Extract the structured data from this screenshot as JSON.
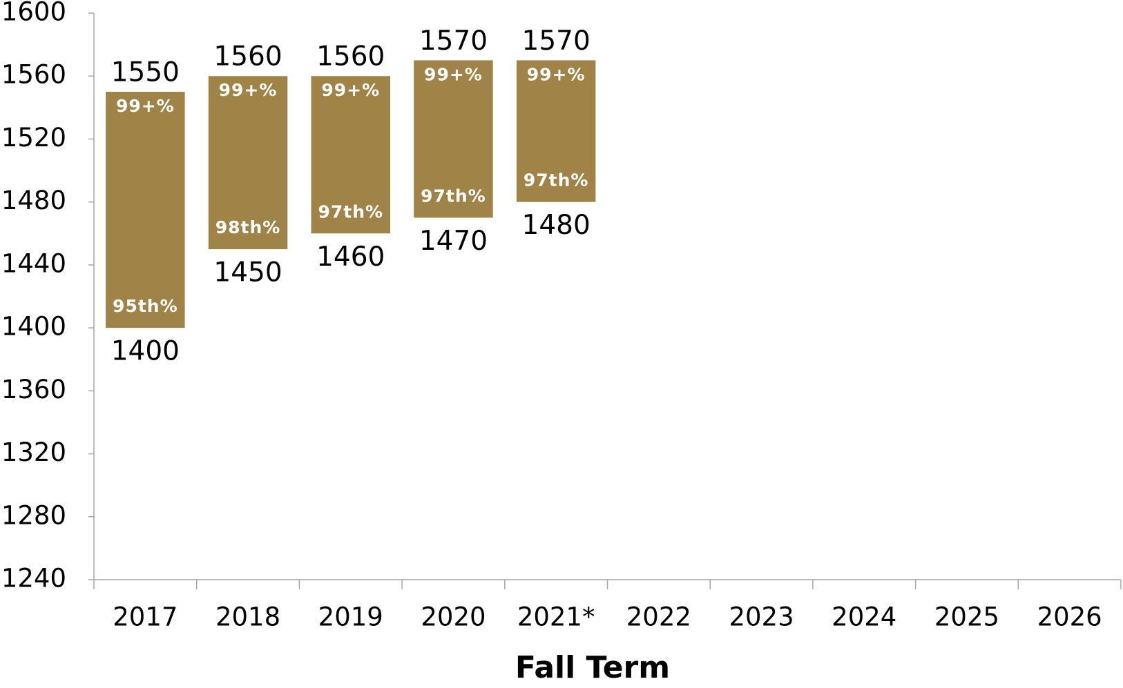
{
  "chart_data": {
    "type": "floating_bar",
    "x_label": "Fall Term",
    "categories": [
      "2017",
      "2018",
      "2019",
      "2020",
      "2021*",
      "2022",
      "2023",
      "2024",
      "2025",
      "2026"
    ],
    "low": [
      1400,
      1450,
      1460,
      1470,
      1480,
      null,
      null,
      null,
      null,
      null
    ],
    "high": [
      1550,
      1560,
      1560,
      1570,
      1570,
      null,
      null,
      null,
      null,
      null
    ],
    "top_labels": [
      "99+%",
      "99+%",
      "99+%",
      "99+%",
      "99+%",
      null,
      null,
      null,
      null,
      null
    ],
    "bottom_labels": [
      "95th%",
      "98th%",
      "97th%",
      "97th%",
      "97th%",
      null,
      null,
      null,
      null,
      null
    ],
    "color": "#a08447",
    "ylim": [
      1240,
      1600
    ],
    "yticks": [
      1240,
      1280,
      1320,
      1360,
      1400,
      1440,
      1480,
      1520,
      1560,
      1600
    ]
  }
}
